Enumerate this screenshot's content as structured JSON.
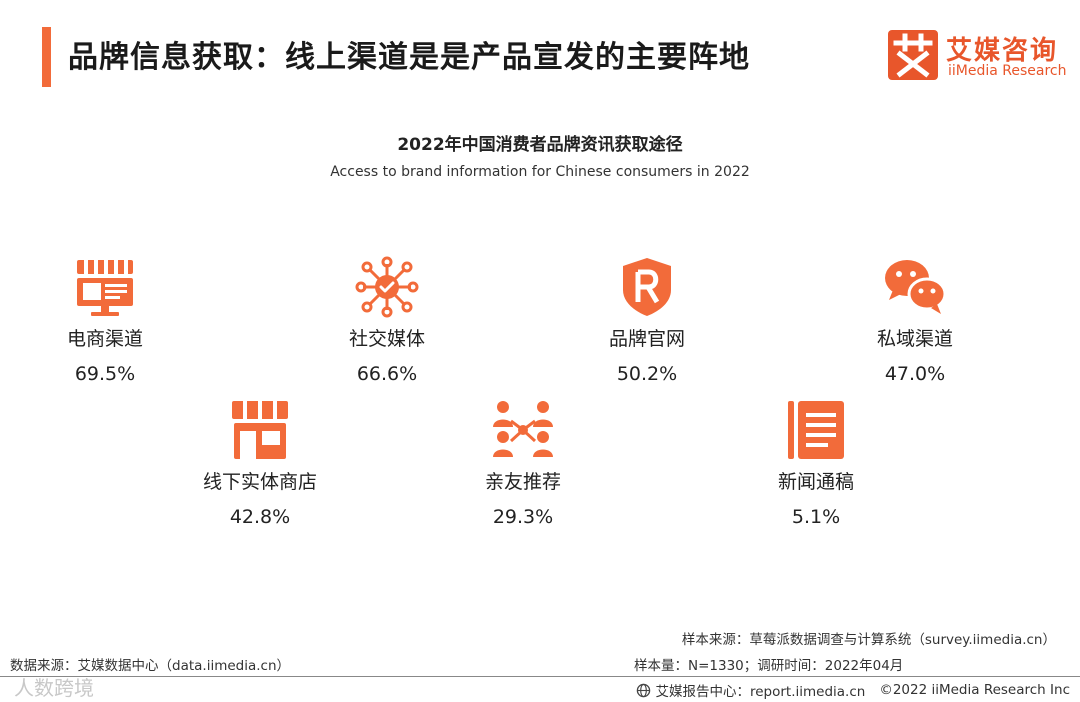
{
  "header": {
    "title": "品牌信息获取：线上渠道是是产品宣发的主要阵地",
    "accent_color": "#f26b3a"
  },
  "logo": {
    "mark": "艾",
    "name_cn": "艾媒咨询",
    "name_en": "iiMedia Research"
  },
  "chart_data": {
    "type": "icon-value-grid",
    "title": "2022年中国消费者品牌资讯获取途径",
    "subtitle": "Access to brand information for Chinese consumers in 2022",
    "unit": "%",
    "color": "#f26b3a",
    "items": [
      {
        "label": "电商渠道",
        "value": 69.5,
        "display": "69.5%",
        "icon": "storefront-screen-icon"
      },
      {
        "label": "社交媒体",
        "value": 66.6,
        "display": "66.6%",
        "icon": "social-network-icon"
      },
      {
        "label": "品牌官网",
        "value": 50.2,
        "display": "50.2%",
        "icon": "registered-shield-icon"
      },
      {
        "label": "私域渠道",
        "value": 47.0,
        "display": "47.0%",
        "icon": "wechat-chat-icon"
      },
      {
        "label": "线下实体商店",
        "value": 42.8,
        "display": "42.8%",
        "icon": "store-icon"
      },
      {
        "label": "亲友推荐",
        "value": 29.3,
        "display": "29.3%",
        "icon": "people-network-icon"
      },
      {
        "label": "新闻通稿",
        "value": 5.1,
        "display": "5.1%",
        "icon": "news-document-icon"
      }
    ]
  },
  "footer": {
    "source_left": "数据来源：艾媒数据中心（data.iimedia.cn）",
    "sample_source": "样本来源：草莓派数据调查与计算系统（survey.iimedia.cn）",
    "sample_size": "样本量：N=1330；调研时间：2022年04月",
    "report_center": "艾媒报告中心：report.iimedia.cn",
    "copyright": "©2022  iiMedia Research  Inc",
    "watermark": "人数跨境"
  }
}
